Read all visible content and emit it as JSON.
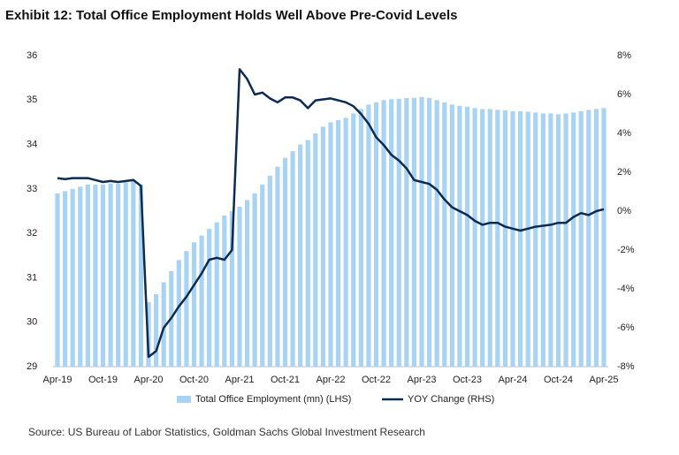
{
  "chart_data": {
    "type": "bar_line",
    "title": "Exhibit 12: Total Office Employment Holds Well Above Pre-Covid Levels",
    "source": "Source: US Bureau of Labor Statistics, Goldman Sachs Global Investment Research",
    "categories": [
      "Apr-19",
      null,
      null,
      null,
      null,
      null,
      "Oct-19",
      null,
      null,
      null,
      null,
      null,
      "Apr-20",
      null,
      null,
      null,
      null,
      null,
      "Oct-20",
      null,
      null,
      null,
      null,
      null,
      "Apr-21",
      null,
      null,
      null,
      null,
      null,
      "Oct-21",
      null,
      null,
      null,
      null,
      null,
      "Apr-22",
      null,
      null,
      null,
      null,
      null,
      "Oct-22",
      null,
      null,
      null,
      null,
      null,
      "Apr-23",
      null,
      null,
      null,
      null,
      null,
      "Oct-23",
      null,
      null,
      null,
      null,
      null,
      "Apr-24",
      null,
      null,
      null,
      null,
      null,
      "Oct-24",
      null,
      null,
      null,
      null,
      null,
      "Apr-25"
    ],
    "series": [
      {
        "name": "Total Office Employment (mn) (LHS)",
        "type": "bar",
        "color": "#a9d3f2",
        "values": [
          32.9,
          32.95,
          33.0,
          33.05,
          33.1,
          33.1,
          33.1,
          33.12,
          33.12,
          33.15,
          33.18,
          33.1,
          30.45,
          30.63,
          30.9,
          31.15,
          31.4,
          31.6,
          31.8,
          31.95,
          32.1,
          32.25,
          32.4,
          32.5,
          32.6,
          32.75,
          32.9,
          33.1,
          33.3,
          33.5,
          33.7,
          33.85,
          34.0,
          34.1,
          34.25,
          34.4,
          34.5,
          34.55,
          34.6,
          34.7,
          34.8,
          34.9,
          34.95,
          35.0,
          35.02,
          35.03,
          35.05,
          35.05,
          35.07,
          35.05,
          35.0,
          34.95,
          34.9,
          34.87,
          34.85,
          34.82,
          34.8,
          34.8,
          34.78,
          34.77,
          34.75,
          34.75,
          34.74,
          34.72,
          34.7,
          34.7,
          34.68,
          34.7,
          34.72,
          34.75,
          34.78,
          34.8,
          34.82
        ]
      },
      {
        "name": "YOY Change (RHS)",
        "type": "line",
        "axis": "y2",
        "color": "#0d2b52",
        "values": [
          1.7,
          1.65,
          1.7,
          1.7,
          1.7,
          1.6,
          1.5,
          1.55,
          1.5,
          1.55,
          1.6,
          1.3,
          -7.5,
          -7.2,
          -6.0,
          -5.5,
          -4.9,
          -4.4,
          -3.8,
          -3.2,
          -2.5,
          -2.4,
          -2.5,
          -2.0,
          7.3,
          6.8,
          6.0,
          6.1,
          5.8,
          5.6,
          5.85,
          5.85,
          5.7,
          5.3,
          5.7,
          5.75,
          5.8,
          5.7,
          5.6,
          5.4,
          5.0,
          4.5,
          3.8,
          3.4,
          2.9,
          2.6,
          2.2,
          1.6,
          1.5,
          1.4,
          1.1,
          0.6,
          0.2,
          0.0,
          -0.2,
          -0.5,
          -0.7,
          -0.6,
          -0.6,
          -0.8,
          -0.9,
          -1.0,
          -0.9,
          -0.8,
          -0.75,
          -0.7,
          -0.6,
          -0.6,
          -0.3,
          -0.1,
          -0.2,
          0.0,
          0.1
        ]
      }
    ],
    "ylim": [
      29,
      36
    ],
    "yticks": [
      29,
      30,
      31,
      32,
      33,
      34,
      35,
      36
    ],
    "y2lim": [
      -8,
      8
    ],
    "y2ticks": [
      {
        "value": -8,
        "label": "-8%"
      },
      {
        "value": -6,
        "label": "-6%"
      },
      {
        "value": -4,
        "label": "-4%"
      },
      {
        "value": -2,
        "label": "-2%"
      },
      {
        "value": 0,
        "label": "0%"
      },
      {
        "value": 2,
        "label": "2%"
      },
      {
        "value": 4,
        "label": "4%"
      },
      {
        "value": 6,
        "label": "6%"
      },
      {
        "value": 8,
        "label": "8%"
      }
    ],
    "legend": "bottom"
  }
}
